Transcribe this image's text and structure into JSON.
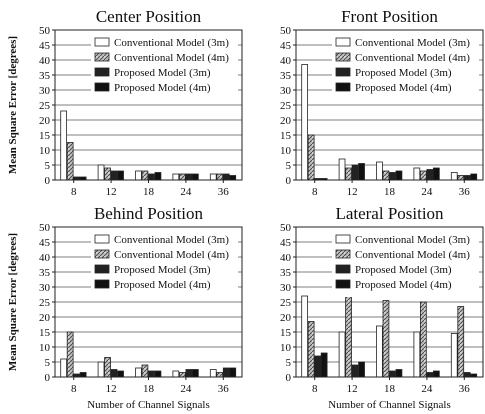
{
  "chart_data": [
    {
      "type": "bar",
      "title": "Center Position",
      "ylabel": "Mean Square Error [degrees]",
      "xlabel": "",
      "ylim": [
        0,
        50
      ],
      "yticks": [
        0,
        5,
        10,
        15,
        20,
        25,
        30,
        35,
        40,
        45,
        50
      ],
      "categories": [
        "8",
        "12",
        "18",
        "24",
        "36"
      ],
      "series": [
        {
          "name": "Conventional Model (3m)",
          "values": [
            23,
            5,
            3,
            2,
            2
          ]
        },
        {
          "name": "Conventional Model (4m)",
          "values": [
            12.5,
            4,
            3,
            2,
            2
          ]
        },
        {
          "name": "Proposed Model (3m)",
          "values": [
            1,
            3,
            2,
            2,
            2
          ]
        },
        {
          "name": "Proposed Model (4m)",
          "values": [
            1,
            3,
            2.5,
            2,
            1.5
          ]
        }
      ],
      "legend": "top-right",
      "grid": "horizontal"
    },
    {
      "type": "bar",
      "title": "Front Position",
      "ylabel": "",
      "xlabel": "",
      "ylim": [
        0,
        50
      ],
      "yticks": [
        0,
        5,
        10,
        15,
        20,
        25,
        30,
        35,
        40,
        45,
        50
      ],
      "categories": [
        "8",
        "12",
        "18",
        "24",
        "36"
      ],
      "series": [
        {
          "name": "Conventional Model (3m)",
          "values": [
            38.5,
            7,
            6,
            4,
            2.5
          ]
        },
        {
          "name": "Conventional Model (4m)",
          "values": [
            15,
            4,
            3,
            3,
            1.5
          ]
        },
        {
          "name": "Proposed Model (3m)",
          "values": [
            0.5,
            5,
            2.5,
            3.5,
            1.5
          ]
        },
        {
          "name": "Proposed Model (4m)",
          "values": [
            0.5,
            5.5,
            3,
            4,
            2
          ]
        }
      ],
      "legend": "top-right",
      "grid": "horizontal"
    },
    {
      "type": "bar",
      "title": "Behind Position",
      "ylabel": "Mean Square Error [degrees]",
      "xlabel": "Number of Channel Signals",
      "ylim": [
        0,
        50
      ],
      "yticks": [
        0,
        5,
        10,
        15,
        20,
        25,
        30,
        35,
        40,
        45,
        50
      ],
      "categories": [
        "8",
        "12",
        "18",
        "24",
        "36"
      ],
      "series": [
        {
          "name": "Conventional Model (3m)",
          "values": [
            6,
            5,
            3,
            2,
            2.5
          ]
        },
        {
          "name": "Conventional Model (4m)",
          "values": [
            15,
            6.5,
            4,
            1.5,
            1.5
          ]
        },
        {
          "name": "Proposed Model (3m)",
          "values": [
            1,
            2.5,
            2,
            2.5,
            3
          ]
        },
        {
          "name": "Proposed Model (4m)",
          "values": [
            1.5,
            2,
            2,
            2.5,
            3
          ]
        }
      ],
      "legend": "top-right",
      "grid": "horizontal"
    },
    {
      "type": "bar",
      "title": "Lateral Position",
      "ylabel": "",
      "xlabel": "Number of Channel Signals",
      "ylim": [
        0,
        50
      ],
      "yticks": [
        0,
        5,
        10,
        15,
        20,
        25,
        30,
        35,
        40,
        45,
        50
      ],
      "categories": [
        "8",
        "12",
        "18",
        "24",
        "36"
      ],
      "series": [
        {
          "name": "Conventional Model (3m)",
          "values": [
            27,
            15,
            17,
            15,
            14.5
          ]
        },
        {
          "name": "Conventional Model (4m)",
          "values": [
            18.5,
            27,
            25.5,
            25,
            23.5
          ]
        },
        {
          "name": "Proposed Model (3m)",
          "values": [
            7,
            4,
            2,
            1.5,
            1.5
          ]
        },
        {
          "name": "Proposed Model (4m)",
          "values": [
            8,
            5,
            2.5,
            2,
            1
          ]
        }
      ],
      "legend": "top-right",
      "grid": "horizontal"
    }
  ],
  "style": {
    "series_fills": [
      "#ffffff",
      "url(#hatch)",
      "#222222",
      "#111111"
    ],
    "frame_color": "#222222",
    "grid_color": "#555555"
  }
}
